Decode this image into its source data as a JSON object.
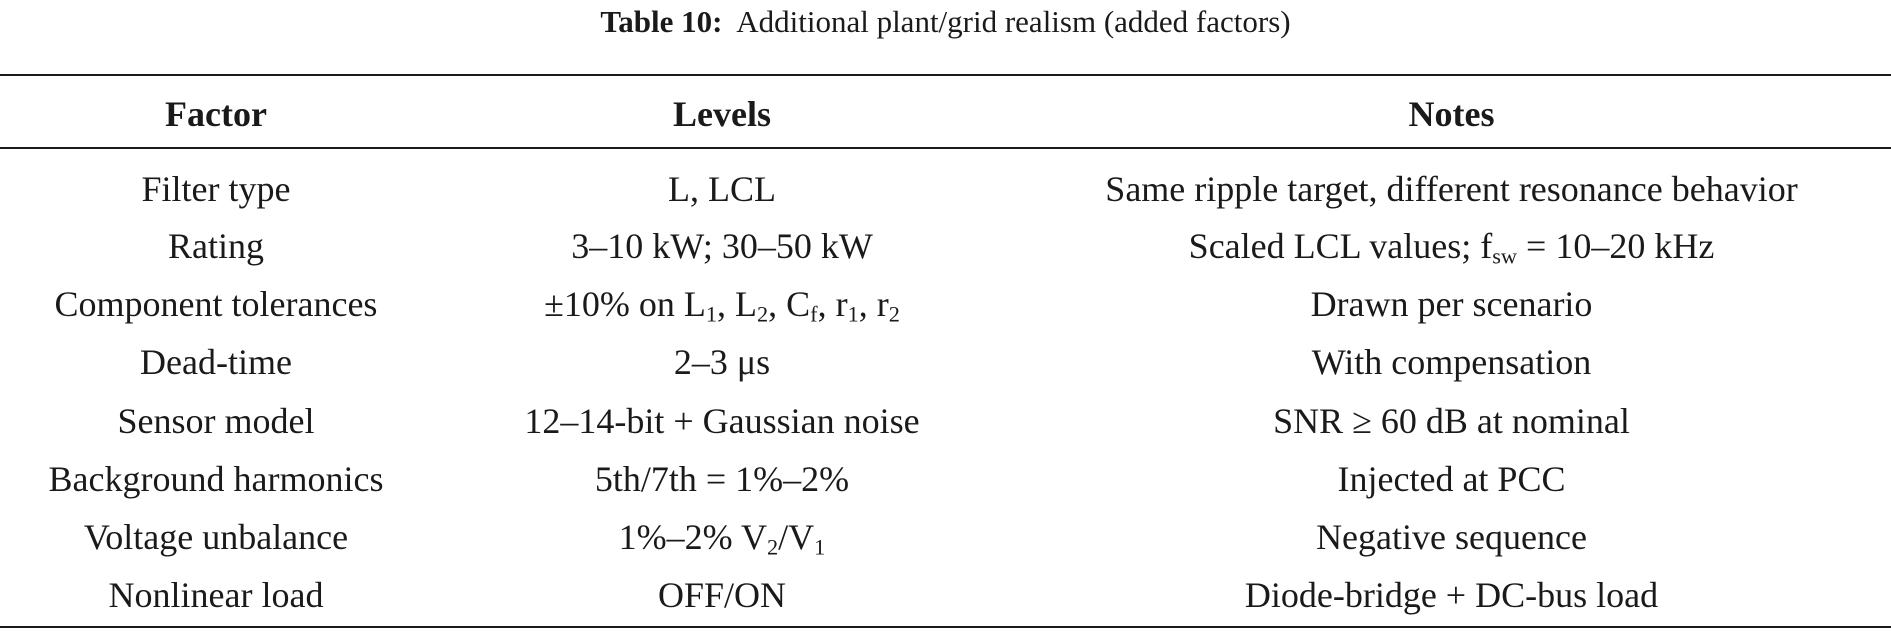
{
  "table": {
    "caption_label": "Table 10:",
    "caption_text": "Additional plant/grid realism (added factors)",
    "headers": [
      "Factor",
      "Levels",
      "Notes"
    ],
    "rows": [
      {
        "factor": "Filter type",
        "levels": [
          {
            "t": "L, LCL"
          }
        ],
        "notes": [
          {
            "t": "Same ripple target, different resonance behavior"
          }
        ]
      },
      {
        "factor": "Rating",
        "levels": [
          {
            "t": "3–10 kW; 30–50 kW"
          }
        ],
        "notes": [
          {
            "t": "Scaled LCL values; f"
          },
          {
            "sub": "sw"
          },
          {
            "t": " = 10–20 kHz"
          }
        ]
      },
      {
        "factor": "Component tolerances",
        "levels": [
          {
            "t": "±10% on L"
          },
          {
            "sub": "1"
          },
          {
            "t": ", L"
          },
          {
            "sub": "2"
          },
          {
            "t": ", C"
          },
          {
            "sub": "f"
          },
          {
            "t": ", r"
          },
          {
            "sub": "1"
          },
          {
            "t": ", r"
          },
          {
            "sub": "2"
          }
        ],
        "notes": [
          {
            "t": "Drawn per scenario"
          }
        ]
      },
      {
        "factor": "Dead-time",
        "levels": [
          {
            "t": "2–3 μs"
          }
        ],
        "notes": [
          {
            "t": "With compensation"
          }
        ]
      },
      {
        "factor": "Sensor model",
        "levels": [
          {
            "t": "12–14-bit + Gaussian noise"
          }
        ],
        "notes": [
          {
            "t": "SNR ≥ 60 dB at nominal"
          }
        ]
      },
      {
        "factor": "Background harmonics",
        "levels": [
          {
            "t": "5th/7th = 1%–2%"
          }
        ],
        "notes": [
          {
            "t": "Injected at PCC"
          }
        ]
      },
      {
        "factor": "Voltage unbalance",
        "levels": [
          {
            "t": "1%–2% V"
          },
          {
            "sub": "2"
          },
          {
            "t": "/V"
          },
          {
            "sub": "1"
          }
        ],
        "notes": [
          {
            "t": "Negative sequence"
          }
        ]
      },
      {
        "factor": "Nonlinear load",
        "levels": [
          {
            "t": "OFF/ON"
          }
        ],
        "notes": [
          {
            "t": "Diode-bridge + DC-bus load"
          }
        ]
      }
    ]
  }
}
